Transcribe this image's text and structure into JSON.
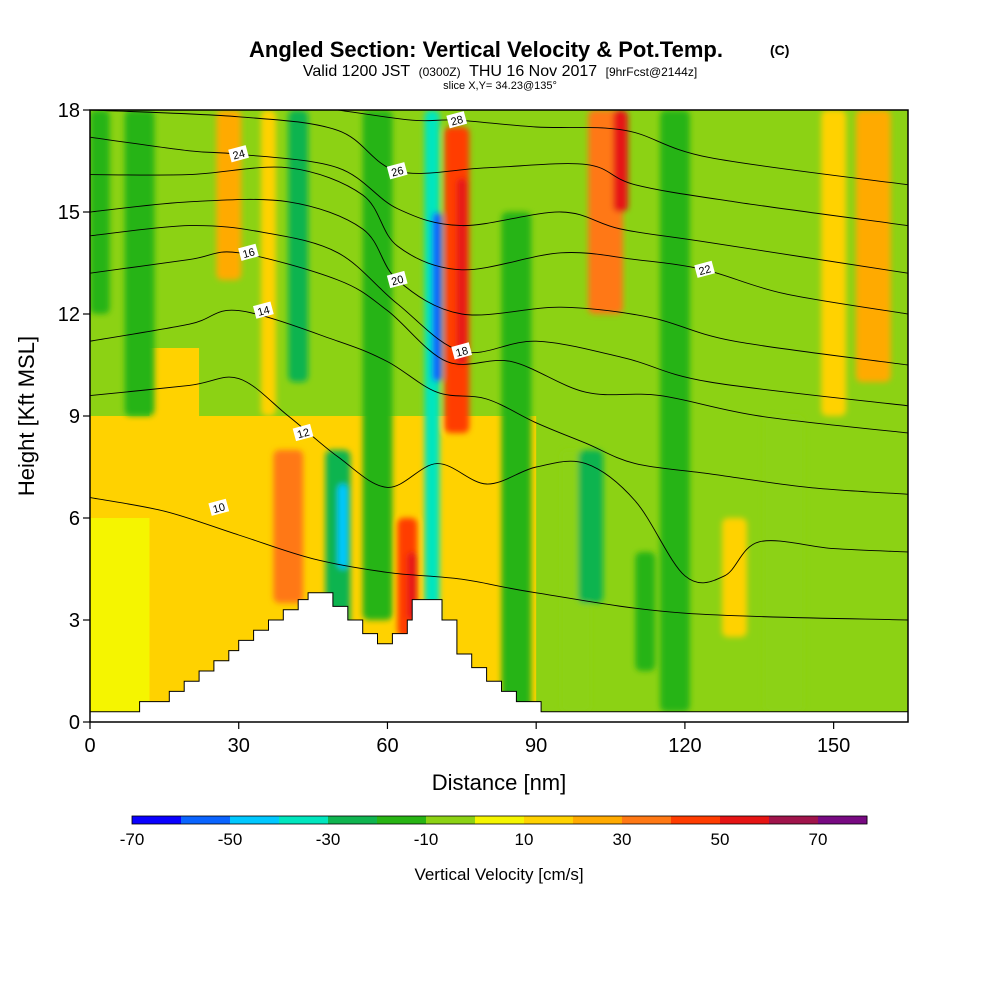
{
  "chart_data": {
    "type": "heatmap",
    "title": "Angled Section: Vertical Velocity & Pot.Temp.",
    "title_mark": "(C)",
    "subtitle": {
      "lead": "Valid 1200 JST",
      "zulu": "(0300Z)",
      "date": "THU 16 Nov 2017",
      "fcst": "[9hrFcst@2144z]"
    },
    "slice_label": "slice X,Y= 34.23@135°",
    "xlabel": "Distance [nm]",
    "ylabel": "Height [Kft MSL]",
    "xlim": [
      0,
      165
    ],
    "ylim": [
      0,
      18
    ],
    "x_ticks": [
      0,
      30,
      60,
      90,
      120,
      150
    ],
    "y_ticks": [
      0,
      3,
      6,
      9,
      12,
      15,
      18
    ],
    "colorbar": {
      "label": "Vertical Velocity [cm/s]",
      "levels": [
        -70,
        -60,
        -50,
        -40,
        -30,
        -20,
        -10,
        0,
        10,
        20,
        30,
        40,
        50,
        60,
        70,
        80
      ],
      "tick_labels": [
        -70,
        -50,
        -30,
        -10,
        10,
        30,
        50,
        70
      ],
      "colors": [
        "#0a00ff",
        "#0a64ff",
        "#00c8ff",
        "#00e6be",
        "#10b450",
        "#28b414",
        "#8cd214",
        "#f5f500",
        "#ffd200",
        "#ffaa00",
        "#ff7814",
        "#ff3c00",
        "#e61414",
        "#a0144b",
        "#780a82"
      ]
    },
    "velocity_columns": [
      {
        "x": 2,
        "w": 4,
        "base": 12,
        "top": 18,
        "v": -15
      },
      {
        "x": 10,
        "w": 6,
        "base": 9,
        "top": 18,
        "v": -15
      },
      {
        "x": 28,
        "w": 5,
        "base": 13,
        "top": 18,
        "v": 25
      },
      {
        "x": 22,
        "w": 8,
        "base": 0.3,
        "top": 8,
        "v": 15
      },
      {
        "x": 40,
        "w": 6,
        "base": 3.5,
        "top": 8,
        "v": 30
      },
      {
        "x": 36,
        "w": 3,
        "base": 9,
        "top": 18,
        "v": 15
      },
      {
        "x": 42,
        "w": 4,
        "base": 10,
        "top": 18,
        "v": -25
      },
      {
        "x": 50,
        "w": 5,
        "base": 2.5,
        "top": 8,
        "v": -30
      },
      {
        "x": 51,
        "w": 2,
        "base": 4.5,
        "top": 7,
        "v": -50
      },
      {
        "x": 58,
        "w": 6,
        "base": 3,
        "top": 18,
        "v": -15
      },
      {
        "x": 64,
        "w": 4,
        "base": 2.5,
        "top": 6,
        "v": 40
      },
      {
        "x": 65,
        "w": 2,
        "base": 3,
        "top": 5,
        "v": 50
      },
      {
        "x": 69,
        "w": 3,
        "base": 2.5,
        "top": 18,
        "v": -35
      },
      {
        "x": 70,
        "w": 2,
        "base": 10,
        "top": 15,
        "v": -60
      },
      {
        "x": 74,
        "w": 5,
        "base": 8.5,
        "top": 17.5,
        "v": 40
      },
      {
        "x": 75,
        "w": 2,
        "base": 10.5,
        "top": 16,
        "v": 55
      },
      {
        "x": 86,
        "w": 6,
        "base": 0.3,
        "top": 15,
        "v": -15
      },
      {
        "x": 98,
        "w": 6,
        "base": 0.3,
        "top": 8,
        "v": -10
      },
      {
        "x": 101,
        "w": 5,
        "base": 3.5,
        "top": 8,
        "v": -30
      },
      {
        "x": 104,
        "w": 7,
        "base": 12,
        "top": 18,
        "v": 35
      },
      {
        "x": 107,
        "w": 3,
        "base": 15,
        "top": 18,
        "v": 50
      },
      {
        "x": 112,
        "w": 4,
        "base": 1.5,
        "top": 5,
        "v": -15
      },
      {
        "x": 118,
        "w": 6,
        "base": 0.3,
        "top": 18,
        "v": -15
      },
      {
        "x": 130,
        "w": 5,
        "base": 2.5,
        "top": 6,
        "v": 15
      },
      {
        "x": 140,
        "w": 8,
        "base": 0.3,
        "top": 9,
        "v": -5
      },
      {
        "x": 150,
        "w": 5,
        "base": 9,
        "top": 18,
        "v": 15
      },
      {
        "x": 158,
        "w": 7,
        "base": 10,
        "top": 18,
        "v": 25
      }
    ],
    "theta_contours": [
      {
        "label": "10",
        "lx": 26,
        "ly": 6.3,
        "pts": [
          [
            0,
            6.6
          ],
          [
            15,
            6.2
          ],
          [
            30,
            5.5
          ],
          [
            45,
            4.8
          ],
          [
            60,
            4.4
          ],
          [
            75,
            4.2
          ],
          [
            90,
            3.8
          ],
          [
            120,
            3.2
          ],
          [
            165,
            3.0
          ]
        ]
      },
      {
        "label": "12",
        "lx": 43,
        "ly": 8.5,
        "pts": [
          [
            0,
            9.6
          ],
          [
            20,
            9.9
          ],
          [
            30,
            10.1
          ],
          [
            40,
            9.0
          ],
          [
            50,
            7.8
          ],
          [
            60,
            6.9
          ],
          [
            70,
            7.6
          ],
          [
            80,
            7.0
          ],
          [
            90,
            7.5
          ],
          [
            100,
            7.6
          ],
          [
            110,
            6.5
          ],
          [
            120,
            4.3
          ],
          [
            128,
            4.3
          ],
          [
            135,
            5.3
          ],
          [
            150,
            5.1
          ],
          [
            165,
            5.0
          ]
        ]
      },
      {
        "label": "14",
        "lx": 35,
        "ly": 12.1,
        "pts": [
          [
            0,
            11.2
          ],
          [
            20,
            11.7
          ],
          [
            30,
            12.1
          ],
          [
            50,
            11.2
          ],
          [
            60,
            10.6
          ],
          [
            70,
            9.7
          ],
          [
            80,
            9.5
          ],
          [
            90,
            8.8
          ],
          [
            100,
            8.2
          ],
          [
            110,
            7.6
          ],
          [
            125,
            7.3
          ],
          [
            145,
            6.9
          ],
          [
            165,
            6.7
          ]
        ]
      },
      {
        "label": "16",
        "lx": 32,
        "ly": 13.8,
        "pts": [
          [
            0,
            13.2
          ],
          [
            20,
            13.6
          ],
          [
            30,
            13.8
          ],
          [
            50,
            13.0
          ],
          [
            60,
            12.1
          ],
          [
            72,
            10.6
          ],
          [
            85,
            10.6
          ],
          [
            100,
            9.7
          ],
          [
            115,
            9.6
          ],
          [
            135,
            9.0
          ],
          [
            165,
            8.5
          ]
        ]
      },
      {
        "label": "18",
        "lx": 75,
        "ly": 10.9,
        "pts": [
          [
            0,
            14.3
          ],
          [
            20,
            14.6
          ],
          [
            35,
            14.4
          ],
          [
            50,
            13.8
          ],
          [
            62,
            12.3
          ],
          [
            75,
            10.9
          ],
          [
            90,
            11.2
          ],
          [
            108,
            10.7
          ],
          [
            125,
            10.0
          ],
          [
            165,
            9.3
          ]
        ]
      },
      {
        "label": "20",
        "lx": 62,
        "ly": 13.0,
        "pts": [
          [
            0,
            15.0
          ],
          [
            20,
            15.3
          ],
          [
            40,
            15.3
          ],
          [
            55,
            14.5
          ],
          [
            62,
            13.0
          ],
          [
            75,
            12.0
          ],
          [
            95,
            12.2
          ],
          [
            113,
            11.9
          ],
          [
            130,
            11.2
          ],
          [
            165,
            10.5
          ]
        ]
      },
      {
        "label": "22",
        "lx": 124,
        "ly": 13.3,
        "pts": [
          [
            0,
            16.1
          ],
          [
            20,
            16.1
          ],
          [
            40,
            16.3
          ],
          [
            55,
            15.5
          ],
          [
            62,
            14.0
          ],
          [
            75,
            13.3
          ],
          [
            95,
            13.8
          ],
          [
            110,
            13.6
          ],
          [
            124,
            13.3
          ],
          [
            140,
            12.6
          ],
          [
            165,
            12.0
          ]
        ]
      },
      {
        "label": "24",
        "lx": 30,
        "ly": 16.7,
        "pts": [
          [
            0,
            17.2
          ],
          [
            20,
            16.8
          ],
          [
            30,
            16.7
          ],
          [
            50,
            16.3
          ],
          [
            62,
            15.1
          ],
          [
            75,
            14.6
          ],
          [
            95,
            15.0
          ],
          [
            107,
            14.5
          ],
          [
            125,
            14.1
          ],
          [
            165,
            13.2
          ]
        ]
      },
      {
        "label": "26",
        "lx": 62,
        "ly": 16.2,
        "pts": [
          [
            0,
            18.0
          ],
          [
            30,
            17.8
          ],
          [
            50,
            17.4
          ],
          [
            62,
            16.2
          ],
          [
            80,
            16.3
          ],
          [
            100,
            16.4
          ],
          [
            110,
            15.8
          ],
          [
            130,
            15.3
          ],
          [
            165,
            14.6
          ]
        ]
      },
      {
        "label": "28",
        "lx": 74,
        "ly": 17.7,
        "pts": [
          [
            50,
            18.0
          ],
          [
            65,
            17.7
          ],
          [
            74,
            17.7
          ],
          [
            90,
            17.5
          ],
          [
            108,
            17.4
          ],
          [
            125,
            16.6
          ],
          [
            165,
            15.8
          ]
        ]
      }
    ],
    "terrain": [
      [
        0,
        0.3
      ],
      [
        10,
        0.3
      ],
      [
        10,
        0.6
      ],
      [
        16,
        0.6
      ],
      [
        16,
        0.9
      ],
      [
        19,
        0.9
      ],
      [
        19,
        1.2
      ],
      [
        22,
        1.2
      ],
      [
        22,
        1.5
      ],
      [
        25,
        1.5
      ],
      [
        25,
        1.8
      ],
      [
        28,
        1.8
      ],
      [
        28,
        2.1
      ],
      [
        30,
        2.1
      ],
      [
        30,
        2.4
      ],
      [
        33,
        2.4
      ],
      [
        33,
        2.7
      ],
      [
        36,
        2.7
      ],
      [
        36,
        3.0
      ],
      [
        39,
        3.0
      ],
      [
        39,
        3.3
      ],
      [
        42,
        3.3
      ],
      [
        42,
        3.6
      ],
      [
        44,
        3.6
      ],
      [
        44,
        3.8
      ],
      [
        49,
        3.8
      ],
      [
        49,
        3.4
      ],
      [
        52,
        3.4
      ],
      [
        52,
        3.0
      ],
      [
        55,
        3.0
      ],
      [
        55,
        2.6
      ],
      [
        58,
        2.6
      ],
      [
        58,
        2.3
      ],
      [
        61,
        2.3
      ],
      [
        61,
        2.6
      ],
      [
        64,
        2.6
      ],
      [
        64,
        3.0
      ],
      [
        65,
        3.0
      ],
      [
        65,
        3.6
      ],
      [
        71,
        3.6
      ],
      [
        71,
        3.0
      ],
      [
        74,
        3.0
      ],
      [
        74,
        2.0
      ],
      [
        77,
        2.0
      ],
      [
        77,
        1.6
      ],
      [
        80,
        1.6
      ],
      [
        80,
        1.2
      ],
      [
        83,
        1.2
      ],
      [
        83,
        0.9
      ],
      [
        86,
        0.9
      ],
      [
        86,
        0.6
      ],
      [
        91,
        0.6
      ],
      [
        91,
        0.3
      ],
      [
        165,
        0.3
      ]
    ]
  }
}
